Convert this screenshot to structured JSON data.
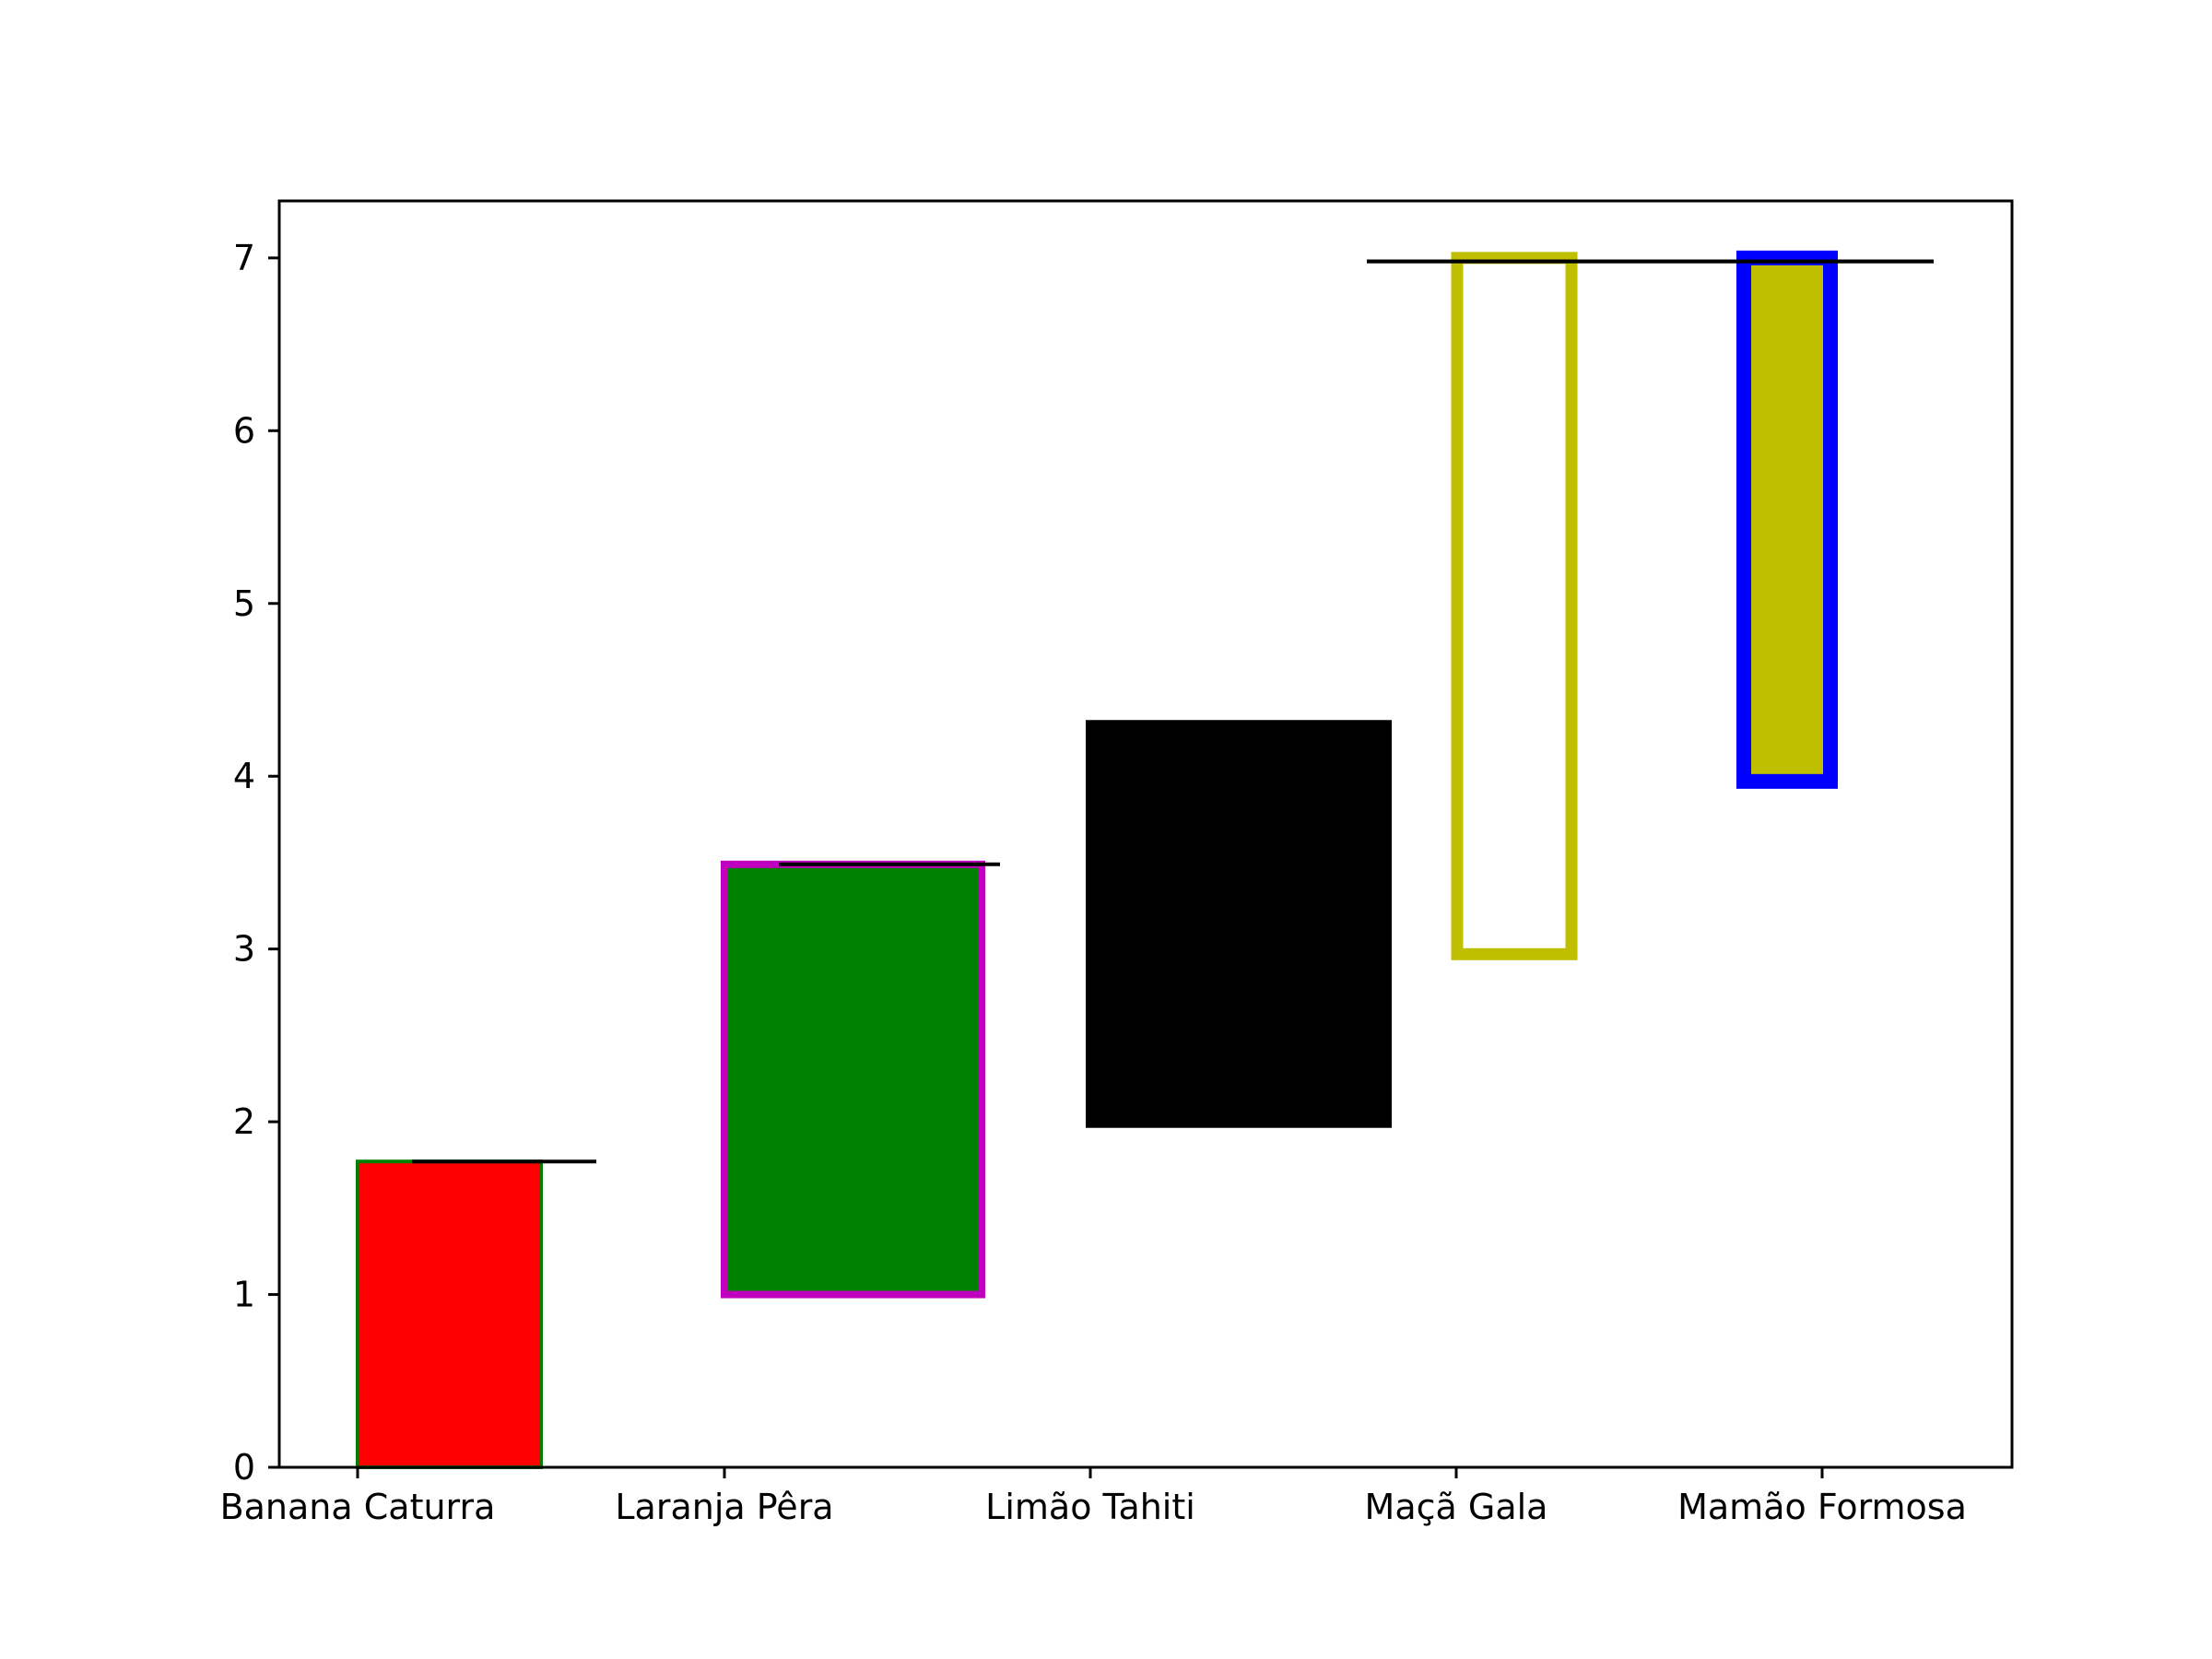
{
  "chart_data": {
    "type": "bar",
    "title": "",
    "xlabel": "",
    "ylabel": "",
    "categories": [
      "Banana Caturra",
      "Laranja Pêra",
      "Limão Tahiti",
      "Maçã Gala",
      "Mamão Formosa"
    ],
    "ylim": [
      0,
      7.33
    ],
    "yticks": [
      0,
      1,
      2,
      3,
      4,
      5,
      6,
      7
    ],
    "grid": false,
    "bars": [
      {
        "category": "Banana Caturra",
        "bottom": 0.0,
        "top": 1.77,
        "fill": "#ff0000",
        "edge": "#008000",
        "hline": {
          "y": 1.77
        }
      },
      {
        "category": "Laranja Pêra",
        "bottom": 1.0,
        "top": 3.49,
        "fill": "#008000",
        "edge": "#bf00bf",
        "hline": {
          "y": 3.49
        }
      },
      {
        "category": "Limão Tahiti",
        "bottom": 1.97,
        "top": 4.32,
        "fill": "#000000",
        "edge": "#000000"
      },
      {
        "category": "Maçã Gala",
        "bottom": 2.97,
        "top": 7.0,
        "fill": "none",
        "edge": "#bfbf00",
        "hline": {
          "y": 6.98
        }
      },
      {
        "category": "Mamão Formosa",
        "bottom": 3.97,
        "top": 7.0,
        "fill": "#bfbf00",
        "edge": "#0000ff",
        "hline": {
          "y": 6.98
        }
      }
    ]
  }
}
